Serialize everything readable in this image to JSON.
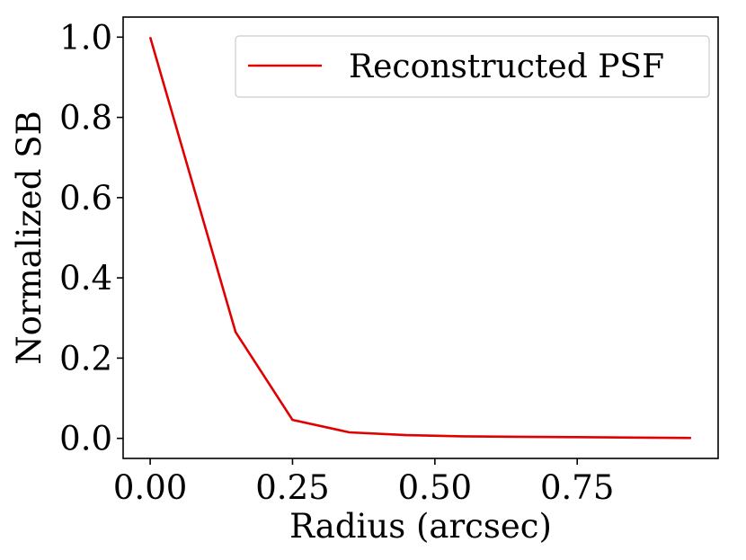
{
  "chart_data": {
    "type": "line",
    "title": "",
    "xlabel": "Radius (arcsec)",
    "ylabel": "Normalized SB",
    "xlim": [
      -0.0475,
      0.9975
    ],
    "ylim": [
      -0.05,
      1.05
    ],
    "xticks": [
      0.0,
      0.25,
      0.5,
      0.75
    ],
    "xtick_labels": [
      "0.00",
      "0.25",
      "0.50",
      "0.75"
    ],
    "yticks": [
      0.0,
      0.2,
      0.4,
      0.6,
      0.8,
      1.0
    ],
    "ytick_labels": [
      "0.0",
      "0.2",
      "0.4",
      "0.6",
      "0.8",
      "1.0"
    ],
    "grid": false,
    "legend_position": "top-right",
    "series": [
      {
        "name": "Reconstructed PSF",
        "color": "#e00000",
        "x": [
          0.0,
          0.15,
          0.25,
          0.35,
          0.45,
          0.55,
          0.65,
          0.75,
          0.85,
          0.95
        ],
        "y": [
          1.0,
          0.265,
          0.046,
          0.015,
          0.008,
          0.005,
          0.004,
          0.003,
          0.002,
          0.001
        ]
      }
    ]
  }
}
